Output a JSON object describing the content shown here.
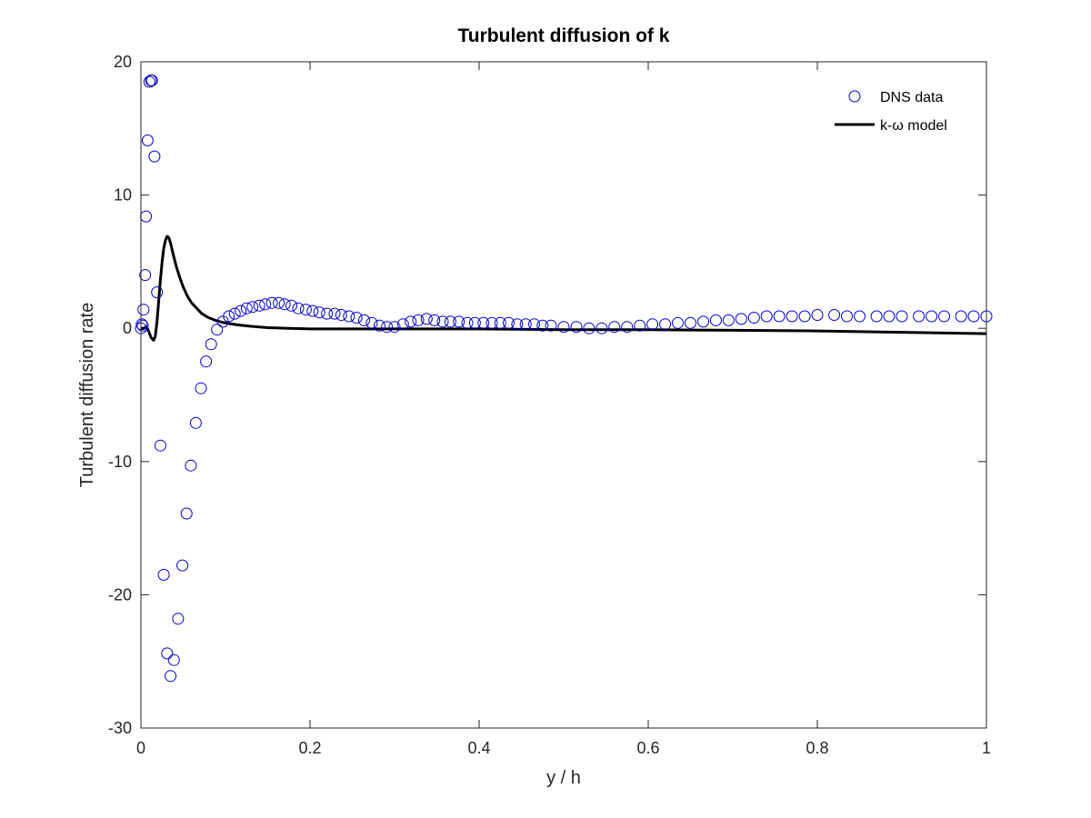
{
  "chart_data": {
    "type": "scatter",
    "title": "Turbulent diffusion of k",
    "xlabel": "y / h",
    "ylabel": "Turbulent diffusion rate",
    "xlim": [
      0,
      1
    ],
    "ylim": [
      -30,
      20
    ],
    "xticks": [
      0,
      0.2,
      0.4,
      0.6,
      0.8,
      1
    ],
    "xtick_labels": [
      "0",
      "0.2",
      "0.4",
      "0.6",
      "0.8",
      "1"
    ],
    "yticks": [
      -30,
      -20,
      -10,
      0,
      10,
      20
    ],
    "ytick_labels": [
      "-30",
      "-20",
      "-10",
      "0",
      "10",
      "20"
    ],
    "grid": false,
    "legend_position": "top-right",
    "series": [
      {
        "name": "DNS data",
        "kind": "markers",
        "marker": "circle",
        "color": "#0000cc",
        "x": [
          0.0,
          0.001,
          0.002,
          0.003,
          0.005,
          0.006,
          0.008,
          0.01,
          0.012,
          0.013,
          0.016,
          0.019,
          0.023,
          0.027,
          0.031,
          0.035,
          0.039,
          0.044,
          0.049,
          0.054,
          0.059,
          0.065,
          0.071,
          0.077,
          0.083,
          0.09,
          0.097,
          0.104,
          0.111,
          0.118,
          0.125,
          0.132,
          0.14,
          0.147,
          0.155,
          0.163,
          0.17,
          0.178,
          0.186,
          0.195,
          0.203,
          0.211,
          0.22,
          0.229,
          0.237,
          0.246,
          0.255,
          0.264,
          0.273,
          0.282,
          0.291,
          0.3,
          0.31,
          0.319,
          0.328,
          0.338,
          0.347,
          0.357,
          0.366,
          0.376,
          0.386,
          0.395,
          0.405,
          0.415,
          0.425,
          0.435,
          0.445,
          0.455,
          0.465,
          0.475,
          0.485,
          0.5,
          0.515,
          0.53,
          0.545,
          0.56,
          0.575,
          0.59,
          0.605,
          0.62,
          0.635,
          0.65,
          0.665,
          0.68,
          0.695,
          0.71,
          0.725,
          0.74,
          0.755,
          0.77,
          0.785,
          0.8,
          0.82,
          0.835,
          0.85,
          0.87,
          0.885,
          0.9,
          0.92,
          0.935,
          0.95,
          0.97,
          0.985,
          1.0
        ],
        "y": [
          0.0,
          0.3,
          0.2,
          1.4,
          4.0,
          8.4,
          14.1,
          18.5,
          18.6,
          18.6,
          12.9,
          2.7,
          -8.8,
          -18.5,
          -24.4,
          -26.1,
          -24.9,
          -21.8,
          -17.8,
          -13.9,
          -10.3,
          -7.1,
          -4.5,
          -2.5,
          -1.2,
          -0.1,
          0.5,
          0.9,
          1.1,
          1.3,
          1.5,
          1.6,
          1.7,
          1.8,
          1.9,
          1.9,
          1.8,
          1.7,
          1.5,
          1.4,
          1.3,
          1.2,
          1.1,
          1.1,
          1.0,
          0.9,
          0.8,
          0.6,
          0.4,
          0.2,
          0.1,
          0.1,
          0.3,
          0.5,
          0.6,
          0.7,
          0.6,
          0.5,
          0.5,
          0.5,
          0.4,
          0.4,
          0.4,
          0.4,
          0.4,
          0.4,
          0.3,
          0.3,
          0.3,
          0.2,
          0.2,
          0.1,
          0.1,
          0.0,
          0.0,
          0.1,
          0.1,
          0.2,
          0.3,
          0.3,
          0.4,
          0.4,
          0.5,
          0.6,
          0.6,
          0.7,
          0.8,
          0.9,
          0.9,
          0.9,
          0.9,
          1.0,
          1.0,
          0.9,
          0.9,
          0.9,
          0.9,
          0.9,
          0.9,
          0.9,
          0.9,
          0.9,
          0.9,
          0.9
        ]
      },
      {
        "name": "k-ω model",
        "kind": "line",
        "color": "#000000",
        "x": [
          0.0,
          0.003,
          0.006,
          0.009,
          0.012,
          0.015,
          0.017,
          0.019,
          0.021,
          0.023,
          0.025,
          0.027,
          0.029,
          0.031,
          0.033,
          0.035,
          0.038,
          0.042,
          0.046,
          0.05,
          0.055,
          0.06,
          0.066,
          0.072,
          0.08,
          0.088,
          0.096,
          0.105,
          0.115,
          0.13,
          0.15,
          0.175,
          0.2,
          0.25,
          0.3,
          0.35,
          0.4,
          0.5,
          0.6,
          0.7,
          0.8,
          0.9,
          1.0
        ],
        "y": [
          0.0,
          0.0,
          0.1,
          -0.2,
          -0.7,
          -0.9,
          -0.6,
          0.5,
          2.0,
          3.6,
          5.0,
          6.0,
          6.6,
          6.9,
          6.8,
          6.4,
          5.6,
          4.6,
          3.8,
          3.1,
          2.4,
          1.9,
          1.5,
          1.1,
          0.8,
          0.6,
          0.45,
          0.35,
          0.25,
          0.15,
          0.05,
          0.0,
          -0.05,
          -0.05,
          -0.05,
          -0.05,
          -0.05,
          -0.1,
          -0.1,
          -0.15,
          -0.2,
          -0.3,
          -0.4
        ]
      }
    ]
  }
}
